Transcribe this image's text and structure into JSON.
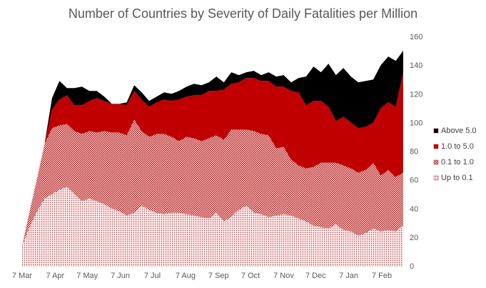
{
  "chart_data": {
    "type": "area",
    "stacked": true,
    "title": "Number of Countries by Severity of Daily Fatalities per Million",
    "xlabel": "",
    "ylabel": "",
    "ylim": [
      0,
      160
    ],
    "y_ticks": [
      0,
      20,
      40,
      60,
      80,
      100,
      120,
      140,
      160
    ],
    "y_axis_side": "right",
    "grid": false,
    "legend_position": "right",
    "x_tick_labels": [
      "7 Mar",
      "7 Apr",
      "7 May",
      "7 Jun",
      "7 Jul",
      "7 Aug",
      "7 Sep",
      "7 Oct",
      "7 Nov",
      "7 Dec",
      "7 Jan",
      "7 Feb"
    ],
    "x_start": "7 Mar",
    "x_step": "weekly",
    "x_count": 52,
    "colors": {
      "Up to 0.1": "#f2c5c5",
      "0.1 to 1.0": "#d9a0a0",
      "1.0 to 5.0": "#c00000",
      "Above 5.0": "#000000"
    },
    "series": [
      {
        "name": "Up to 0.1",
        "pattern": "fine-dots",
        "values": [
          14,
          27,
          38,
          47,
          50,
          53,
          55,
          50,
          45,
          47,
          45,
          43,
          40,
          38,
          35,
          37,
          42,
          39,
          37,
          36,
          37,
          37,
          36,
          35,
          34,
          33,
          37,
          31,
          34,
          39,
          42,
          37,
          36,
          34,
          35,
          36,
          35,
          33,
          31,
          28,
          27,
          26,
          29,
          25,
          24,
          21,
          23,
          26,
          24,
          25,
          24,
          28
        ]
      },
      {
        "name": "0.1 to 1.0",
        "pattern": "dense-dots",
        "values": [
          0,
          11,
          23,
          38,
          46,
          45,
          44,
          44,
          47,
          47,
          48,
          51,
          53,
          55,
          56,
          65,
          52,
          51,
          55,
          56,
          53,
          50,
          54,
          54,
          53,
          56,
          54,
          57,
          61,
          56,
          53,
          57,
          56,
          57,
          47,
          47,
          39,
          37,
          37,
          41,
          45,
          46,
          43,
          45,
          44,
          44,
          44,
          46,
          39,
          42,
          38,
          37
        ]
      },
      {
        "name": "1.0 to 5.0",
        "pattern": "solid",
        "values": [
          0,
          0,
          0,
          0,
          13,
          18,
          20,
          18,
          20,
          21,
          24,
          21,
          20,
          20,
          21,
          20,
          22,
          21,
          22,
          24,
          25,
          29,
          28,
          30,
          32,
          33,
          31,
          35,
          32,
          33,
          36,
          37,
          37,
          38,
          43,
          42,
          48,
          51,
          44,
          46,
          43,
          39,
          29,
          34,
          32,
          31,
          30,
          28,
          47,
          47,
          49,
          70
        ]
      },
      {
        "name": "Above 5.0",
        "pattern": "solid",
        "values": [
          0,
          0,
          0,
          0,
          8,
          13,
          5,
          12,
          13,
          7,
          5,
          3,
          0,
          0,
          2,
          4,
          5,
          4,
          4,
          5,
          5,
          6,
          7,
          8,
          7,
          6,
          10,
          5,
          8,
          5,
          4,
          5,
          4,
          6,
          7,
          8,
          6,
          10,
          20,
          24,
          20,
          30,
          32,
          34,
          32,
          32,
          32,
          30,
          30,
          32,
          32,
          15
        ]
      }
    ]
  }
}
